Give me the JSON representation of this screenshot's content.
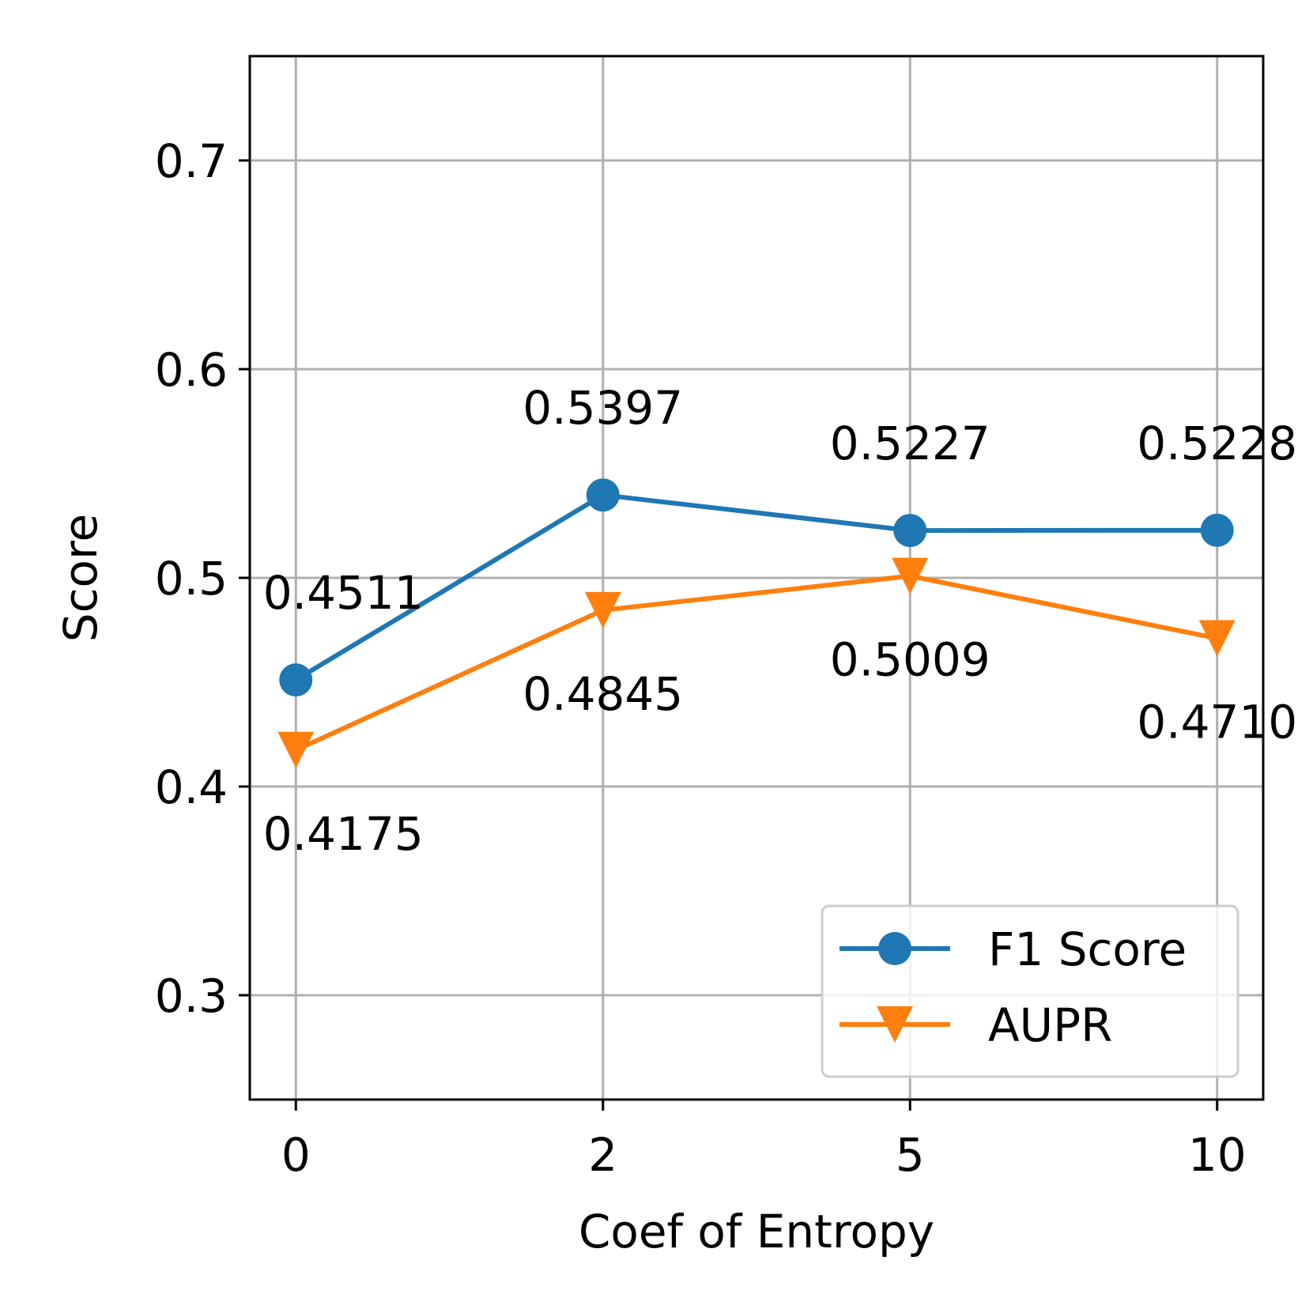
{
  "chart_data": {
    "type": "line",
    "title": "",
    "xlabel": "Coef of Entropy",
    "ylabel": "Score",
    "categories": [
      "0",
      "2",
      "5",
      "10"
    ],
    "ylim": [
      0.25,
      0.75
    ],
    "yticks": [
      0.3,
      0.4,
      0.5,
      0.6,
      0.7
    ],
    "ytick_labels": [
      "0.3",
      "0.4",
      "0.5",
      "0.6",
      "0.7"
    ],
    "grid": true,
    "legend_position": "lower-right",
    "series": [
      {
        "name": "F1 Score",
        "color": "#1f77b4",
        "marker": "circle",
        "label_position": "above",
        "values": [
          0.4511,
          0.5397,
          0.5227,
          0.5228
        ],
        "value_labels": [
          "0.4511",
          "0.5397",
          "0.5227",
          "0.5228"
        ]
      },
      {
        "name": "AUPR",
        "color": "#ff7f0e",
        "marker": "triangle-down",
        "label_position": "below",
        "values": [
          0.4175,
          0.4845,
          0.5009,
          0.471
        ],
        "value_labels": [
          "0.4175",
          "0.4845",
          "0.5009",
          "0.4710"
        ]
      }
    ]
  }
}
